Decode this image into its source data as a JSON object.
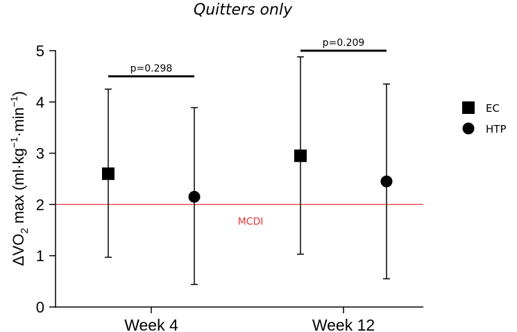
{
  "chart_data": {
    "type": "scatter",
    "title": "Quitters only",
    "ylabel": {
      "prefix": "ΔVO",
      "sub": "2",
      "mid": " max (ml·kg",
      "sup1": "−1",
      "mid2": "·min",
      "sup2": "−1",
      "suffix": ")"
    },
    "xlabel": "",
    "categories": [
      "Week 4",
      "Week 12"
    ],
    "ylim": [
      0,
      5
    ],
    "yticks": [
      "0",
      "1",
      "2",
      "3",
      "4",
      "5"
    ],
    "grid": false,
    "legend_position": "right",
    "series": [
      {
        "name": "EC",
        "marker": "square",
        "color": "#000000",
        "values": [
          2.6,
          2.95
        ],
        "lower": [
          0.97,
          1.03
        ],
        "upper": [
          4.25,
          4.88
        ]
      },
      {
        "name": "HTP",
        "marker": "circle",
        "color": "#000000",
        "values": [
          2.15,
          2.45
        ],
        "lower": [
          0.44,
          0.55
        ],
        "upper": [
          3.89,
          4.35
        ]
      }
    ],
    "reference_line": {
      "label": "MCDI",
      "value": 2.0,
      "color": "#e8383b"
    },
    "comparisons": [
      {
        "label": "p=0.298",
        "category": "Week 4",
        "y": 4.5
      },
      {
        "label": "p=0.209",
        "category": "Week 12",
        "y": 5.0
      }
    ]
  }
}
